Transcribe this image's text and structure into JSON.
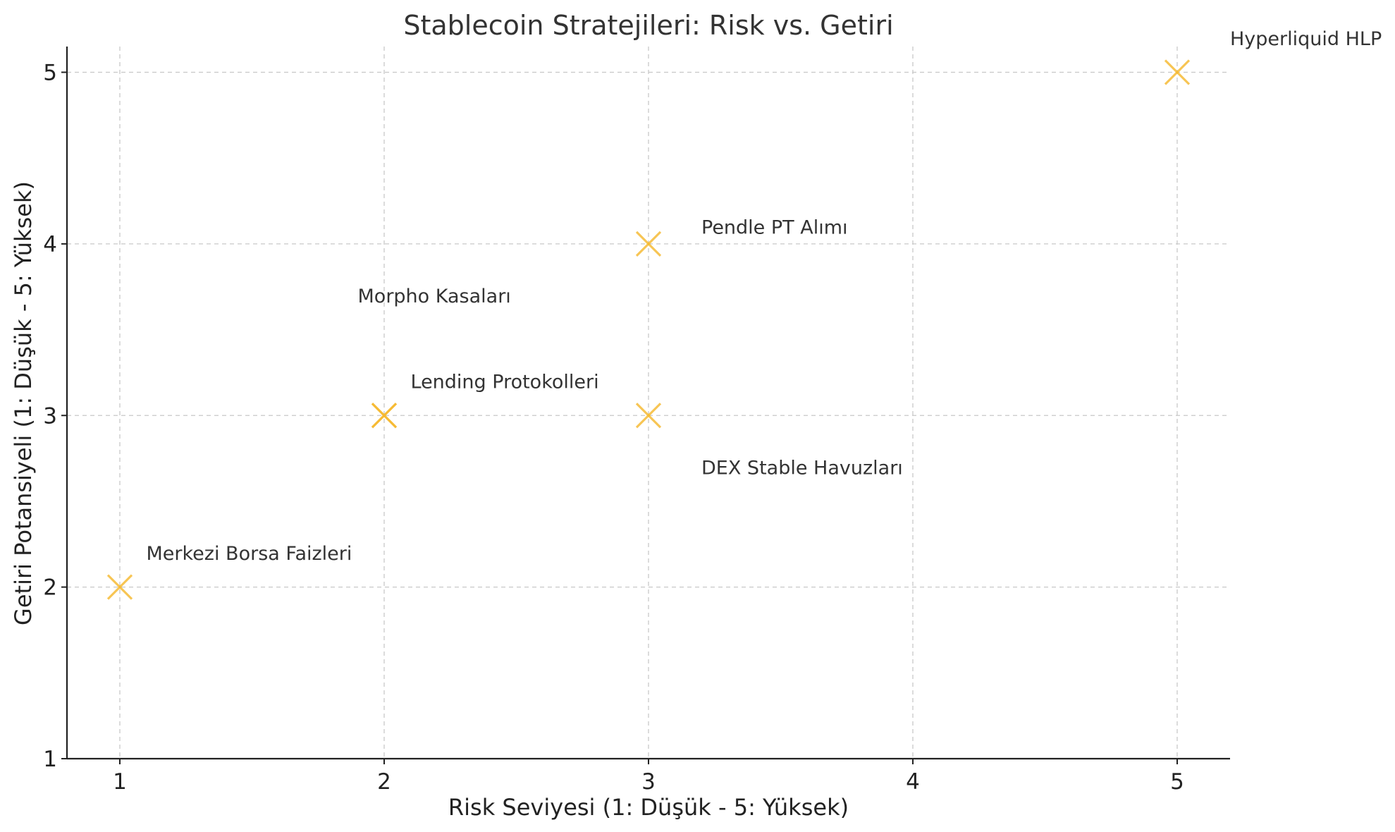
{
  "chart_data": {
    "type": "scatter",
    "title": "Stablecoin Stratejileri: Risk vs. Getiri",
    "xlabel": "Risk Seviyesi (1: Düşük - 5: Yüksek)",
    "ylabel": "Getiri Potansiyeli (1: Düşük - 5: Yüksek)",
    "xlim": [
      0.8,
      5.2
    ],
    "ylim": [
      1,
      5.15
    ],
    "xticks": [
      1,
      2,
      3,
      4,
      5
    ],
    "yticks": [
      1,
      2,
      3,
      4,
      5
    ],
    "grid": true,
    "marker": "x",
    "marker_color": "#F5B82E",
    "points": [
      {
        "label": "Merkezi Borsa Faizleri",
        "x": 1,
        "y": 2
      },
      {
        "label": "Lending Protokolleri",
        "x": 2,
        "y": 3
      },
      {
        "label": "Morpho Kasaları",
        "x": 2,
        "y": 3
      },
      {
        "label": "DEX Stable Havuzları",
        "x": 3,
        "y": 3
      },
      {
        "label": "Pendle PT Alımı",
        "x": 3,
        "y": 4
      },
      {
        "label": "Hyperliquid HLP",
        "x": 5,
        "y": 5
      }
    ],
    "annotations": [
      {
        "text": "Merkezi Borsa Faizleri",
        "x": 1.1,
        "y": 2.2
      },
      {
        "text": "Lending Protokolleri",
        "x": 2.1,
        "y": 3.2
      },
      {
        "text": "Morpho Kasaları",
        "x": 1.9,
        "y": 3.7
      },
      {
        "text": "DEX Stable Havuzları",
        "x": 3.2,
        "y": 2.7
      },
      {
        "text": "Pendle PT Alımı",
        "x": 3.2,
        "y": 4.1
      },
      {
        "text": "Hyperliquid HLP",
        "x": 5.2,
        "y": 5.2
      }
    ]
  }
}
